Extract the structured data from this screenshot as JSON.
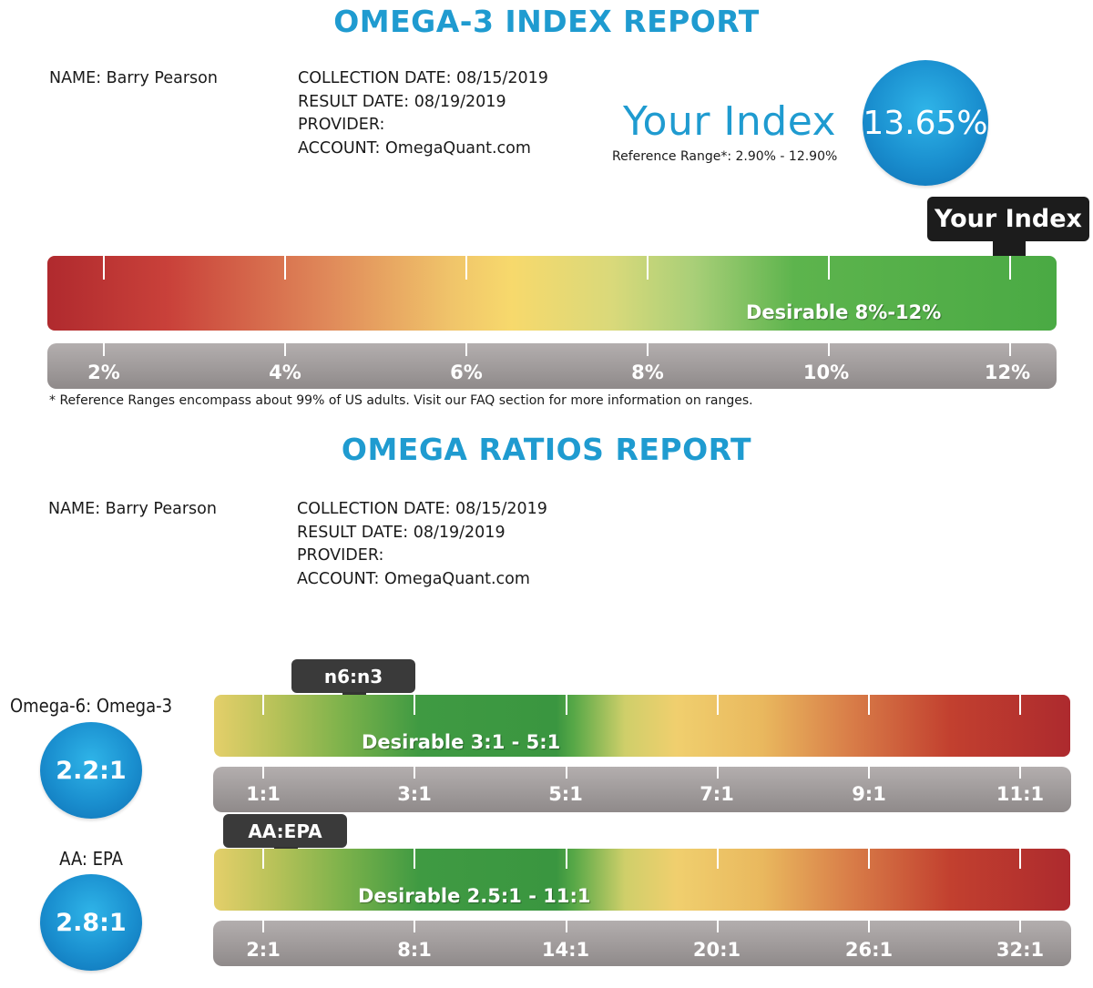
{
  "index_report": {
    "title": "OMEGA-3 INDEX REPORT",
    "name": "NAME: Barry Pearson",
    "collection_date": "COLLECTION DATE: 08/15/2019",
    "result_date": "RESULT DATE: 08/19/2019",
    "provider": "PROVIDER:",
    "account": "ACCOUNT: OmegaQuant.com",
    "your_index_heading": "Your Index",
    "reference_range": "Reference Range*: 2.90% - 12.90%",
    "index_value": "13.65%",
    "marker_label": "Your Index",
    "desirable_label": "Desirable 8%-12%",
    "scale_labels": [
      "2%",
      "4%",
      "6%",
      "8%",
      "10%",
      "12%"
    ],
    "footnote": "* Reference Ranges encompass about 99% of US adults. Visit our FAQ section for more information on ranges.",
    "colors": {
      "accent": "#1f9bd0",
      "red": "#b52a2a",
      "yellow": "#f5d468",
      "green": "#4aaa44"
    }
  },
  "ratios_report": {
    "title": "OMEGA RATIOS REPORT",
    "name": "NAME: Barry Pearson",
    "collection_date": "COLLECTION DATE: 08/15/2019",
    "result_date": "RESULT DATE: 08/19/2019",
    "provider": "PROVIDER:",
    "account": "ACCOUNT: OmegaQuant.com",
    "n6n3": {
      "label": "Omega-6: Omega-3",
      "value": "2.2:1",
      "marker_label": "n6:n3",
      "desirable_label": "Desirable 3:1 - 5:1",
      "scale_labels": [
        "1:1",
        "3:1",
        "5:1",
        "7:1",
        "9:1",
        "11:1"
      ]
    },
    "aaepa": {
      "label": "AA: EPA",
      "value": "2.8:1",
      "marker_label": "AA:EPA",
      "desirable_label": "Desirable 2.5:1 - 11:1",
      "scale_labels": [
        "2:1",
        "8:1",
        "14:1",
        "20:1",
        "26:1",
        "32:1"
      ]
    }
  }
}
